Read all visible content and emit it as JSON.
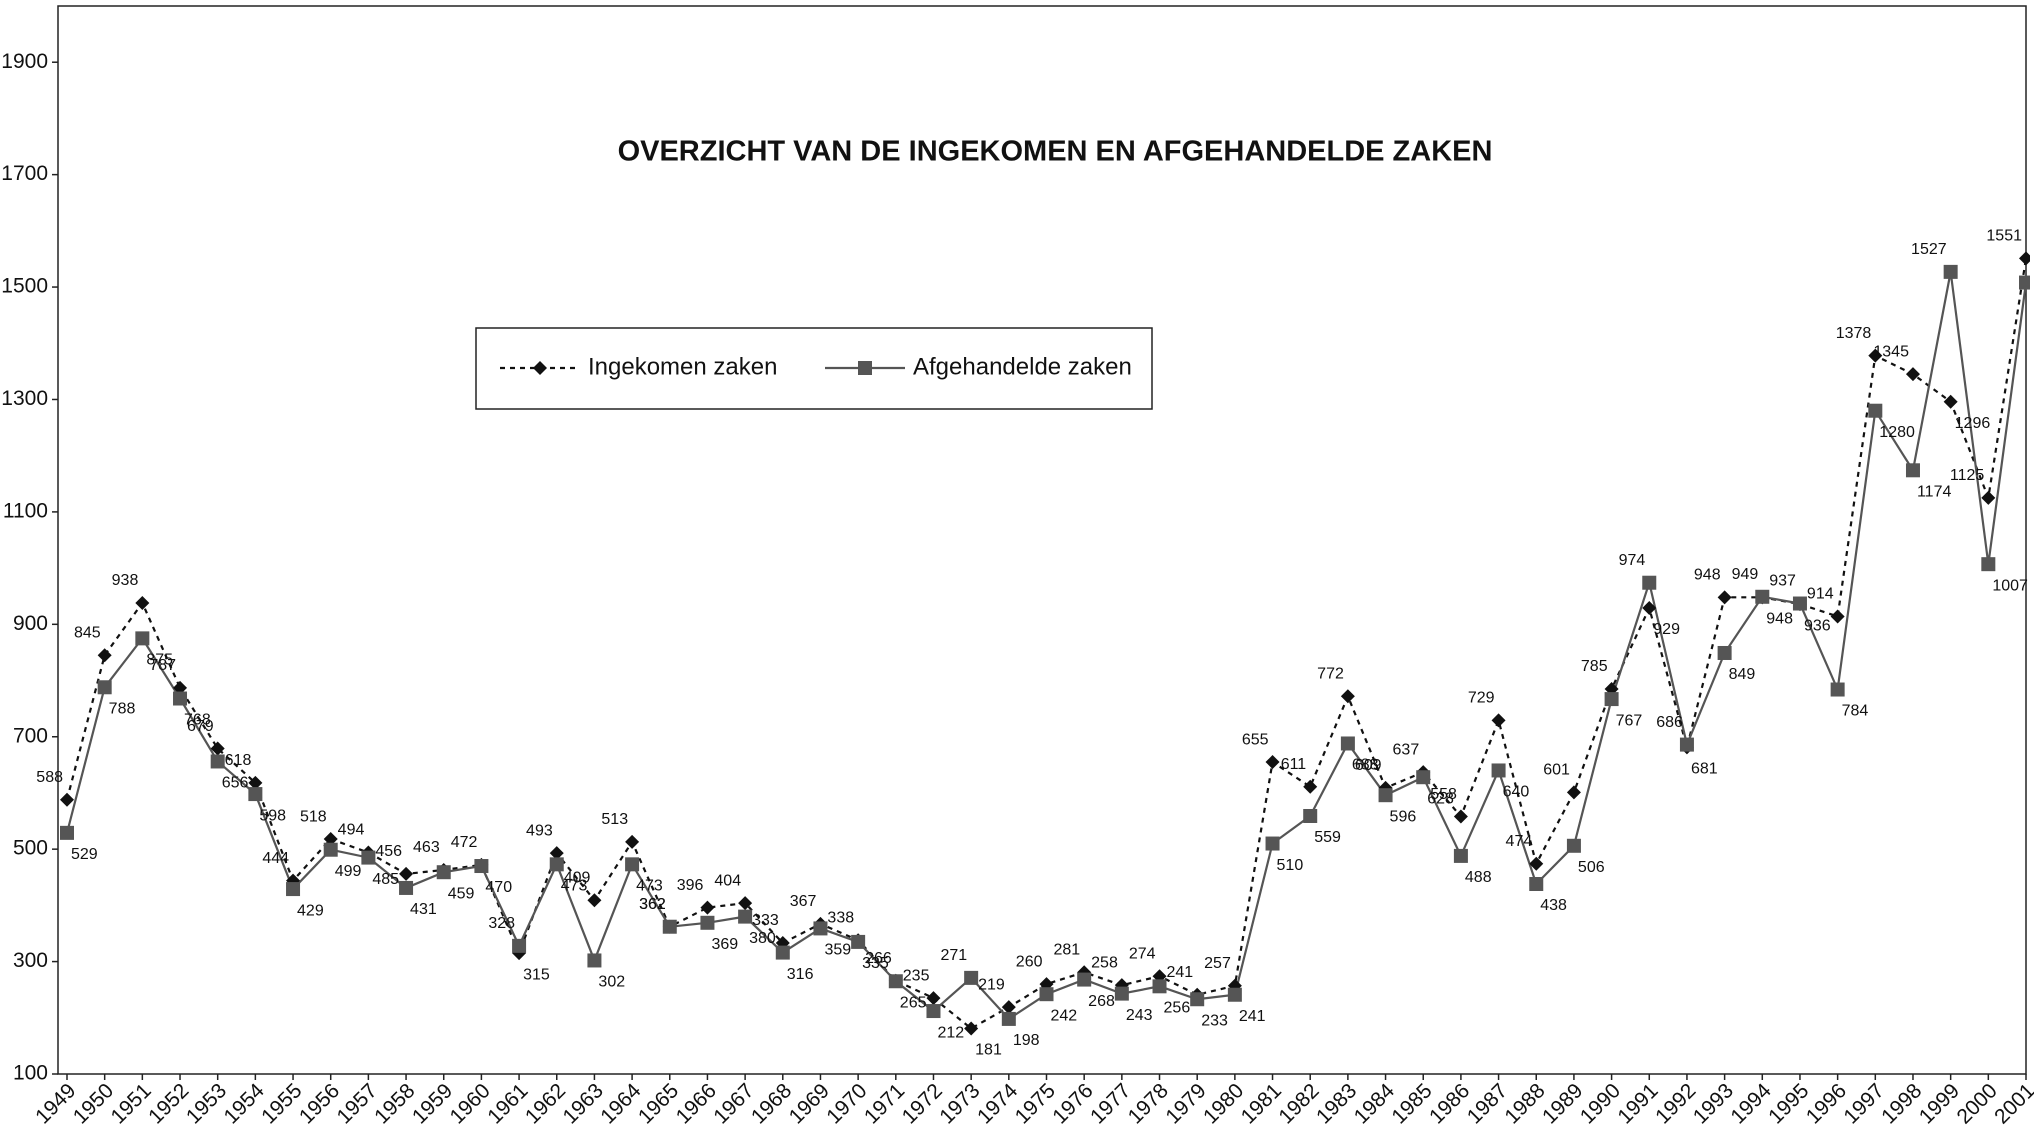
{
  "chart_data": {
    "type": "line",
    "title": "OVERZICHT VAN DE INGEKOMEN EN AFGEHANDELDE ZAKEN",
    "categories": [
      "1949",
      "1950",
      "1951",
      "1952",
      "1953",
      "1954",
      "1955",
      "1956",
      "1957",
      "1958",
      "1959",
      "1960",
      "1961",
      "1962",
      "1963",
      "1964",
      "1965",
      "1966",
      "1967",
      "1968",
      "1969",
      "1970",
      "1971",
      "1972",
      "1973",
      "1974",
      "1975",
      "1976",
      "1977",
      "1978",
      "1979",
      "1980",
      "1981",
      "1982",
      "1983",
      "1984",
      "1985",
      "1986",
      "1987",
      "1988",
      "1989",
      "1990",
      "1991",
      "1992",
      "1993",
      "1994",
      "1995",
      "1996",
      "1997",
      "1998",
      "1999",
      "2000",
      "2001"
    ],
    "series": [
      {
        "name": "Ingekomen zaken",
        "color": "#111111",
        "dash": true,
        "marker": "diamond",
        "values": [
          588,
          845,
          938,
          787,
          679,
          618,
          444,
          518,
          494,
          456,
          463,
          472,
          315,
          493,
          409,
          513,
          362,
          396,
          404,
          333,
          367,
          338,
          266,
          235,
          181,
          219,
          260,
          281,
          258,
          274,
          241,
          257,
          655,
          611,
          772,
          609,
          637,
          558,
          729,
          474,
          601,
          785,
          929,
          681,
          948,
          948,
          936,
          914,
          1378,
          1345,
          1296,
          1125,
          1551
        ]
      },
      {
        "name": "Afgehandelde zaken",
        "color": "#555555",
        "dash": false,
        "marker": "square",
        "values": [
          529,
          788,
          875,
          768,
          656,
          598,
          429,
          499,
          485,
          431,
          459,
          470,
          328,
          473,
          302,
          473,
          362,
          369,
          380,
          316,
          359,
          335,
          265,
          212,
          271,
          198,
          242,
          268,
          243,
          256,
          233,
          241,
          510,
          559,
          688,
          596,
          628,
          488,
          640,
          438,
          506,
          767,
          974,
          686,
          849,
          949,
          937,
          784,
          1280,
          1174,
          1527,
          1007,
          1508
        ]
      }
    ],
    "ylim": [
      100,
      2000
    ],
    "yticks": [
      100,
      300,
      500,
      700,
      900,
      1100,
      1300,
      1500,
      1700,
      1900
    ],
    "grid": false
  }
}
